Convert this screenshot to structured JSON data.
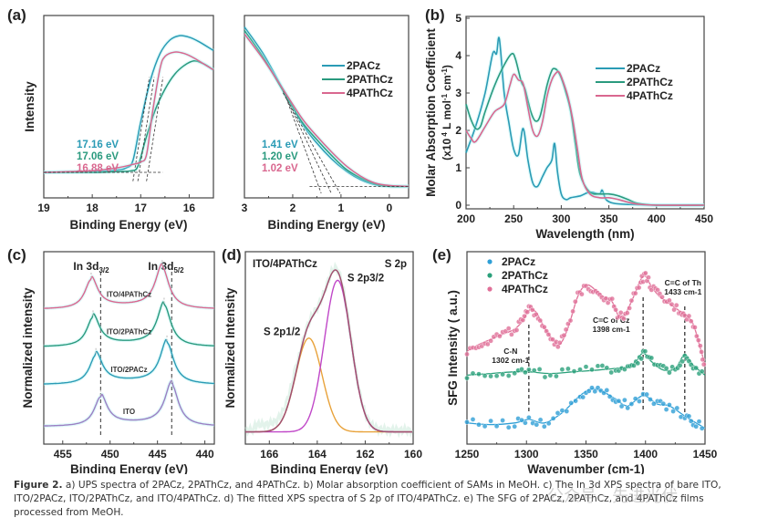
{
  "colors": {
    "2PACz": "#2a9bb5",
    "2PAThCz": "#2a9a7e",
    "4PAThCz": "#d9678f",
    "ITO": "#9b7fc4",
    "fit_s2p12": "#e8a23a",
    "fit_s2p32": "#c048c8",
    "envelope": "#a05070",
    "sfg_2PACz": "#2f9fd6",
    "sfg_2PAThCz": "#2aa07a",
    "sfg_4PAThCz": "#e07098"
  },
  "chart_data": [
    {
      "id": "a1",
      "panel_label": "(a)",
      "type": "line",
      "title": "",
      "xlabel": "Binding Energy (eV)",
      "ylabel": "Intensity",
      "xlim": [
        19,
        15.5
      ],
      "ylim": [
        0,
        1
      ],
      "xticks": [
        19,
        18,
        17,
        16
      ],
      "annotations": [
        {
          "text": "17.16 eV",
          "series": "2PACz"
        },
        {
          "text": "17.06 eV",
          "series": "2PAThCz"
        },
        {
          "text": "16.88 eV",
          "series": "4PAThCz"
        }
      ],
      "series": [
        {
          "name": "2PACz",
          "cutoff": 17.16,
          "x": [
            19,
            18,
            17.5,
            17.3,
            17.16,
            17.0,
            16.8,
            16.6,
            16.4,
            16.2,
            16.0,
            15.8,
            15.5
          ],
          "y": [
            0.08,
            0.085,
            0.095,
            0.11,
            0.16,
            0.42,
            0.7,
            0.88,
            0.97,
            1.0,
            0.99,
            0.96,
            0.9
          ]
        },
        {
          "name": "2PAThCz",
          "cutoff": 17.06,
          "x": [
            19,
            18,
            17.5,
            17.2,
            17.06,
            16.9,
            16.7,
            16.5,
            16.3,
            16.1,
            15.9,
            15.7,
            15.5
          ],
          "y": [
            0.08,
            0.08,
            0.085,
            0.09,
            0.12,
            0.3,
            0.5,
            0.64,
            0.74,
            0.8,
            0.83,
            0.81,
            0.77
          ]
        },
        {
          "name": "4PAThCz",
          "cutoff": 16.88,
          "x": [
            19,
            18,
            17.5,
            17.2,
            17.0,
            16.88,
            16.75,
            16.6,
            16.5,
            16.3,
            16.1,
            15.9,
            15.7,
            15.5
          ],
          "y": [
            0.08,
            0.09,
            0.11,
            0.13,
            0.15,
            0.2,
            0.5,
            0.78,
            0.86,
            0.89,
            0.88,
            0.85,
            0.81,
            0.77
          ]
        }
      ]
    },
    {
      "id": "a2",
      "panel_label": "",
      "type": "line",
      "xlabel": "Binding Energy (eV)",
      "ylabel": "",
      "xlim": [
        3,
        -0.4
      ],
      "ylim": [
        0,
        1
      ],
      "xticks": [
        3,
        2,
        1,
        0
      ],
      "legend": {
        "entries": [
          "2PACz",
          "2PAThCz",
          "4PAThCz"
        ],
        "position": "top-right"
      },
      "annotations": [
        {
          "text": "1.41 eV",
          "series": "2PACz"
        },
        {
          "text": "1.20 eV",
          "series": "2PAThCz"
        },
        {
          "text": "1.02 eV",
          "series": "4PAThCz"
        }
      ],
      "series": [
        {
          "name": "2PACz",
          "onset": 1.41,
          "x": [
            3.0,
            2.6,
            2.2,
            1.8,
            1.5,
            1.2,
            0.9,
            0.6,
            0.3,
            0.0,
            -0.4
          ],
          "y": [
            0.96,
            0.8,
            0.6,
            0.4,
            0.29,
            0.2,
            0.13,
            0.08,
            0.05,
            0.04,
            0.04
          ]
        },
        {
          "name": "2PAThCz",
          "onset": 1.2,
          "x": [
            3.0,
            2.6,
            2.2,
            1.8,
            1.5,
            1.2,
            0.9,
            0.6,
            0.3,
            0.0,
            -0.4
          ],
          "y": [
            0.94,
            0.78,
            0.59,
            0.41,
            0.31,
            0.22,
            0.14,
            0.09,
            0.055,
            0.04,
            0.04
          ]
        },
        {
          "name": "4PAThCz",
          "onset": 1.02,
          "x": [
            3.0,
            2.6,
            2.2,
            1.8,
            1.5,
            1.2,
            0.9,
            0.6,
            0.3,
            0.0,
            -0.4
          ],
          "y": [
            0.92,
            0.77,
            0.6,
            0.43,
            0.33,
            0.24,
            0.16,
            0.1,
            0.06,
            0.045,
            0.04
          ]
        }
      ]
    },
    {
      "id": "b",
      "panel_label": "(b)",
      "type": "line",
      "xlabel": "Wavelength (nm)",
      "ylabel": "Molar Absorption Coefficient",
      "ylabel2": "(x10 4 L mol-1 cm-1)",
      "xlim": [
        200,
        450
      ],
      "ylim": [
        0,
        5
      ],
      "xticks": [
        200,
        250,
        300,
        350,
        400,
        450
      ],
      "yticks": [
        0,
        1,
        2,
        3,
        4,
        5
      ],
      "legend": {
        "entries": [
          "2PACz",
          "2PAThCz",
          "4PAThCz"
        ],
        "position": "top-right"
      },
      "series": [
        {
          "name": "2PACz",
          "x": [
            200,
            210,
            220,
            228,
            232,
            235,
            240,
            245,
            250,
            255,
            260,
            265,
            270,
            275,
            280,
            285,
            290,
            293,
            296,
            300,
            305,
            310,
            320,
            330,
            340,
            343,
            347,
            355,
            370,
            400,
            450
          ],
          "y": [
            1.4,
            2.1,
            3.0,
            4.05,
            4.05,
            4.45,
            3.0,
            2.2,
            1.5,
            1.35,
            2.05,
            1.2,
            0.6,
            0.5,
            0.75,
            1.0,
            1.2,
            1.65,
            0.9,
            0.3,
            0.15,
            0.2,
            0.25,
            0.35,
            0.3,
            0.4,
            0.15,
            0.05,
            0.02,
            0.0,
            0.0
          ]
        },
        {
          "name": "2PAThCz",
          "x": [
            200,
            205,
            210,
            215,
            220,
            230,
            240,
            248,
            252,
            258,
            262,
            268,
            273,
            278,
            285,
            290,
            293,
            296,
            300,
            305,
            310,
            315,
            320,
            330,
            340,
            350,
            360,
            370,
            380,
            400,
            450
          ],
          "y": [
            2.7,
            2.3,
            2.05,
            2.1,
            2.5,
            3.2,
            3.75,
            4.05,
            3.9,
            3.3,
            3.1,
            2.5,
            2.25,
            2.4,
            3.2,
            3.6,
            3.65,
            3.6,
            3.4,
            3.0,
            2.5,
            1.6,
            0.8,
            0.35,
            0.3,
            0.3,
            0.25,
            0.15,
            0.05,
            0.0,
            0.0
          ]
        },
        {
          "name": "4PAThCz",
          "x": [
            200,
            205,
            210,
            220,
            230,
            240,
            246,
            250,
            255,
            260,
            265,
            270,
            275,
            280,
            285,
            290,
            295,
            298,
            302,
            307,
            312,
            317,
            322,
            330,
            340,
            350,
            360,
            370,
            380,
            400,
            450
          ],
          "y": [
            2.0,
            1.8,
            1.7,
            2.1,
            2.5,
            2.7,
            3.2,
            3.5,
            3.35,
            3.25,
            2.6,
            2.0,
            1.85,
            2.2,
            2.9,
            3.35,
            3.55,
            3.55,
            3.3,
            2.9,
            2.3,
            1.5,
            0.7,
            0.3,
            0.2,
            0.2,
            0.15,
            0.08,
            0.03,
            0.0,
            0.0
          ]
        }
      ]
    },
    {
      "id": "c",
      "panel_label": "(c)",
      "type": "line",
      "xlabel": "Binding Energy (eV)",
      "ylabel": "Normalized intensity",
      "xlim": [
        457,
        439
      ],
      "ylim": [
        0,
        4.2
      ],
      "xticks": [
        455,
        450,
        445,
        440
      ],
      "peak_labels": [
        "In 3d3/2",
        "In 3d5/2"
      ],
      "reference_lines": [
        451.0,
        443.5
      ],
      "series": [
        {
          "name": "ITO",
          "offset": 0.2,
          "peak_3d32": 451.0,
          "peak_3d52": 443.5,
          "color_key": "ITO"
        },
        {
          "name": "ITO/2PACz",
          "offset": 1.2,
          "peak_3d32": 451.5,
          "peak_3d52": 444.0,
          "color_key": "2PACz"
        },
        {
          "name": "ITO/2PAThCz",
          "offset": 2.1,
          "peak_3d32": 451.8,
          "peak_3d52": 444.3,
          "color_key": "2PAThCz"
        },
        {
          "name": "ITO/4PAThCz",
          "offset": 3.0,
          "peak_3d32": 452.0,
          "peak_3d52": 444.5,
          "color_key": "4PAThCz"
        }
      ]
    },
    {
      "id": "d",
      "panel_label": "(d)",
      "type": "line",
      "xlabel": "Binding Energy (eV)",
      "ylabel": "Normalized Intensity",
      "xlim": [
        167,
        160
      ],
      "ylim": [
        0,
        1.15
      ],
      "xticks": [
        166,
        164,
        162,
        160
      ],
      "sample_label": "ITO/4PAThCz",
      "region_label": "S 2p",
      "series": [
        {
          "name": "S 2p3/2",
          "center": 163.15,
          "height": 0.97,
          "fwhm": 1.3
        },
        {
          "name": "S 2p1/2",
          "center": 164.35,
          "height": 0.6,
          "fwhm": 1.3
        },
        {
          "name": "Envelope",
          "components": [
            "S 2p3/2",
            "S 2p1/2"
          ]
        }
      ]
    },
    {
      "id": "e",
      "panel_label": "(e)",
      "type": "scatter",
      "xlabel": "Wavenumber (cm-1)",
      "ylabel": "SFG Intensity ( a.u.)",
      "xlim": [
        1250,
        1450
      ],
      "ylim": [
        0,
        1
      ],
      "xticks": [
        1250,
        1300,
        1350,
        1400,
        1450
      ],
      "legend": {
        "entries": [
          "2PACz",
          "2PAThCz",
          "4PAThCz"
        ],
        "position": "top-left"
      },
      "reference_lines": [
        {
          "x": 1302,
          "label": "C-N",
          "sub": "1302 cm-1"
        },
        {
          "x": 1398,
          "label": "C=C of Cz",
          "sub": "1398 cm-1"
        },
        {
          "x": 1433,
          "label": "C=C of Th",
          "sub": "1433 cm-1"
        }
      ],
      "series": [
        {
          "name": "2PACz",
          "x": [
            1250,
            1270,
            1290,
            1302,
            1315,
            1330,
            1345,
            1355,
            1365,
            1375,
            1385,
            1398,
            1410,
            1420,
            1433,
            1440,
            1450
          ],
          "y": [
            0.06,
            0.05,
            0.06,
            0.08,
            0.06,
            0.12,
            0.22,
            0.26,
            0.24,
            0.2,
            0.16,
            0.22,
            0.17,
            0.16,
            0.1,
            0.07,
            0.03
          ]
        },
        {
          "name": "2PAThCz",
          "x": [
            1250,
            1270,
            1290,
            1302,
            1320,
            1340,
            1360,
            1375,
            1385,
            1392,
            1398,
            1405,
            1415,
            1425,
            1433,
            1440,
            1450
          ],
          "y": [
            0.34,
            0.35,
            0.36,
            0.36,
            0.35,
            0.36,
            0.37,
            0.38,
            0.39,
            0.42,
            0.47,
            0.42,
            0.37,
            0.38,
            0.46,
            0.4,
            0.34
          ]
        },
        {
          "name": "4PAThCz",
          "x": [
            1250,
            1260,
            1270,
            1280,
            1290,
            1297,
            1302,
            1308,
            1315,
            1322,
            1328,
            1335,
            1343,
            1350,
            1358,
            1365,
            1372,
            1378,
            1383,
            1390,
            1396,
            1400,
            1405,
            1412,
            1420,
            1428,
            1433,
            1440,
            1446,
            1450
          ],
          "y": [
            0.48,
            0.52,
            0.55,
            0.58,
            0.61,
            0.66,
            0.72,
            0.71,
            0.62,
            0.55,
            0.52,
            0.62,
            0.8,
            0.87,
            0.84,
            0.8,
            0.77,
            0.68,
            0.7,
            0.8,
            0.9,
            0.92,
            0.86,
            0.8,
            0.76,
            0.72,
            0.7,
            0.64,
            0.5,
            0.4
          ]
        }
      ]
    }
  ],
  "caption": {
    "label": "Figure 2.",
    "text": " a) UPS spectra of 2PACz, 2PAThCz, and 4PAThCz. b) Molar absorption coefficient of SAMs in MeOH. c) The In 3d XPS spectra of bare ITO, ITO/2PACz, ITO/2PAThCz, and ITO/4PAThCz. d) The fitted XPS spectra of S 2p of ITO/4PAThCz. e) The SFG of 2PACz, 2PAThCz, and 4PAThCz films processed from MeOH."
  },
  "watermark": "公众号 · 先进光伏"
}
